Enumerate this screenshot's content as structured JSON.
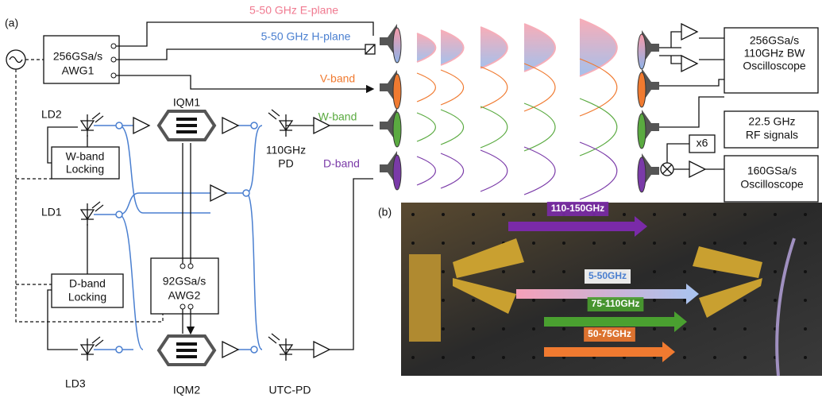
{
  "panel_a": {
    "label": "(a)",
    "signals": {
      "e_plane": "5-50 GHz E-plane",
      "h_plane": "5-50 GHz H-plane",
      "v_band": "V-band",
      "w_band": "W-band",
      "d_band": "D-band"
    },
    "awg1": [
      "256GSa/s",
      "AWG1"
    ],
    "lasers": {
      "ld1": "LD1",
      "ld2": "LD2",
      "ld3": "LD3"
    },
    "w_locking": [
      "W-band",
      "Locking"
    ],
    "d_locking": [
      "D-band",
      "Locking"
    ],
    "iqm1": "IQM1",
    "iqm2": "IQM2",
    "pd": [
      "110GHz",
      "PD"
    ],
    "awg2": [
      "92GSa/s",
      "AWG2"
    ],
    "utc_pd": "UTC-PD",
    "receiver": {
      "scope1": [
        "256GSa/s",
        "110GHz BW",
        "Oscilloscope"
      ],
      "rf": [
        "22.5 GHz",
        "RF signals"
      ],
      "mult": "x6",
      "scope2": [
        "160GSa/s",
        "Oscilloscope"
      ]
    }
  },
  "panel_b": {
    "label": "(b)",
    "beams": [
      "110-150GHz",
      "5-50GHz",
      "75-110GHz",
      "50-75GHz"
    ]
  }
}
